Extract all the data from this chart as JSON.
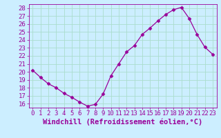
{
  "x": [
    0,
    1,
    2,
    3,
    4,
    5,
    6,
    7,
    8,
    9,
    10,
    11,
    12,
    13,
    14,
    15,
    16,
    17,
    18,
    19,
    20,
    21,
    22,
    23
  ],
  "y": [
    20.2,
    19.3,
    18.5,
    18.0,
    17.3,
    16.8,
    16.2,
    15.7,
    15.9,
    17.2,
    19.5,
    21.0,
    22.5,
    23.3,
    24.7,
    25.5,
    26.4,
    27.2,
    27.8,
    28.1,
    26.7,
    24.7,
    23.1,
    22.2
  ],
  "line_color": "#990099",
  "marker": "D",
  "marker_size": 2.5,
  "xlabel": "Windchill (Refroidissement éolien,°C)",
  "xlim": [
    -0.5,
    23.5
  ],
  "ylim": [
    15.5,
    28.5
  ],
  "yticks": [
    16,
    17,
    18,
    19,
    20,
    21,
    22,
    23,
    24,
    25,
    26,
    27,
    28
  ],
  "xticks": [
    0,
    1,
    2,
    3,
    4,
    5,
    6,
    7,
    8,
    9,
    10,
    11,
    12,
    13,
    14,
    15,
    16,
    17,
    18,
    19,
    20,
    21,
    22,
    23
  ],
  "bg_color": "#cceeff",
  "grid_color": "#aaddcc",
  "label_color": "#990099",
  "font_size": 6.5,
  "xlabel_fontsize": 7.5
}
